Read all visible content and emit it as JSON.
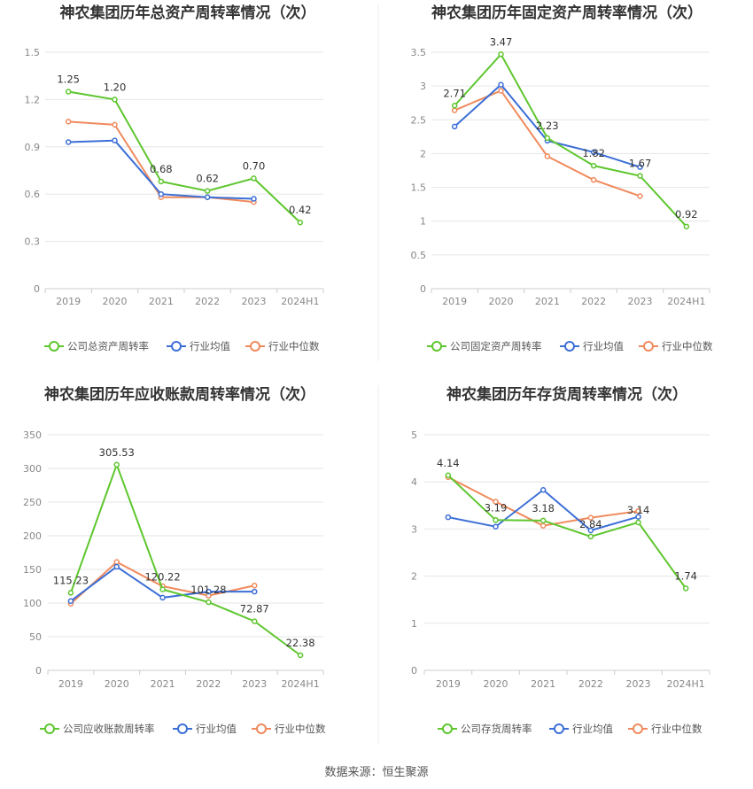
{
  "source": "数据来源：恒生聚源",
  "colors": {
    "company": "#5ec62e",
    "avg": "#3c6fd6",
    "median": "#f08a5d",
    "grid": "#e6e6e6",
    "axis": "#cccccc"
  },
  "chart_data": [
    {
      "type": "line",
      "title": "神农集团历年总资产周转率情况（次）",
      "categories": [
        "2019",
        "2020",
        "2021",
        "2022",
        "2023",
        "2024H1"
      ],
      "ylim": [
        0,
        1.5
      ],
      "yticks": [
        "0",
        "0.3",
        "0.6",
        "0.9",
        "1.2",
        "1.5"
      ],
      "series": [
        {
          "name": "公司总资产周转率",
          "values": [
            1.25,
            1.2,
            0.68,
            0.62,
            0.7,
            0.42
          ],
          "labels": [
            "1.25",
            "1.20",
            "0.68",
            "0.62",
            "0.70",
            "0.42"
          ]
        },
        {
          "name": "行业均值",
          "values": [
            0.93,
            0.94,
            0.6,
            0.58,
            0.57,
            null
          ]
        },
        {
          "name": "行业中位数",
          "values": [
            1.06,
            1.04,
            0.58,
            0.58,
            0.55,
            null
          ]
        }
      ]
    },
    {
      "type": "line",
      "title": "神农集团历年固定资产周转率情况（次）",
      "categories": [
        "2019",
        "2020",
        "2021",
        "2022",
        "2023",
        "2024H1"
      ],
      "ylim": [
        0,
        3.5
      ],
      "yticks": [
        "0",
        "0.5",
        "1",
        "1.5",
        "2",
        "2.5",
        "3",
        "3.5"
      ],
      "series": [
        {
          "name": "公司固定资产周转率",
          "values": [
            2.71,
            3.47,
            2.23,
            1.82,
            1.67,
            0.92
          ],
          "labels": [
            "2.71",
            "3.47",
            "2.23",
            "1.82",
            "1.67",
            "0.92"
          ]
        },
        {
          "name": "行业均值",
          "values": [
            2.4,
            3.02,
            2.19,
            2.02,
            1.8,
            null
          ]
        },
        {
          "name": "行业中位数",
          "values": [
            2.64,
            2.93,
            1.96,
            1.61,
            1.37,
            null
          ]
        }
      ]
    },
    {
      "type": "line",
      "title": "神农集团历年应收账款周转率情况（次）",
      "categories": [
        "2019",
        "2020",
        "2021",
        "2022",
        "2023",
        "2024H1"
      ],
      "ylim": [
        0,
        350
      ],
      "yticks": [
        "0",
        "50",
        "100",
        "150",
        "200",
        "250",
        "300",
        "350"
      ],
      "series": [
        {
          "name": "公司应收账款周转率",
          "values": [
            115.23,
            305.53,
            120.22,
            101.28,
            72.87,
            22.38
          ],
          "labels": [
            "115.23",
            "305.53",
            "120.22",
            "101.28",
            "72.87",
            "22.38"
          ]
        },
        {
          "name": "行业均值",
          "values": [
            103,
            154,
            108,
            117,
            117,
            null
          ]
        },
        {
          "name": "行业中位数",
          "values": [
            99,
            161,
            125,
            111,
            126,
            null
          ]
        }
      ]
    },
    {
      "type": "line",
      "title": "神农集团历年存货周转率情况（次）",
      "categories": [
        "2019",
        "2020",
        "2021",
        "2022",
        "2023",
        "2024H1"
      ],
      "ylim": [
        0,
        5
      ],
      "yticks": [
        "0",
        "1",
        "2",
        "3",
        "4",
        "5"
      ],
      "series": [
        {
          "name": "公司存货周转率",
          "values": [
            4.14,
            3.19,
            3.18,
            2.84,
            3.14,
            1.74
          ],
          "labels": [
            "4.14",
            "3.19",
            "3.18",
            "2.84",
            "3.14",
            "1.74"
          ]
        },
        {
          "name": "行业均值",
          "values": [
            3.25,
            3.05,
            3.83,
            2.97,
            3.26,
            null
          ]
        },
        {
          "name": "行业中位数",
          "values": [
            4.1,
            3.58,
            3.07,
            3.24,
            3.38,
            null
          ]
        }
      ]
    }
  ]
}
